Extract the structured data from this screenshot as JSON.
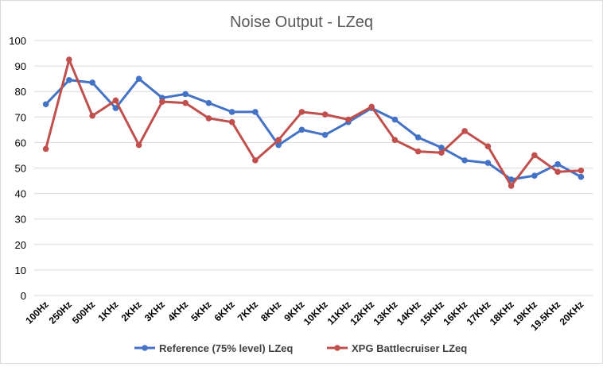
{
  "chart_data": {
    "type": "line",
    "title": "Noise Output  - LZeq",
    "xlabel": "",
    "ylabel": "",
    "ylim": [
      0,
      100
    ],
    "yticks": [
      "0",
      "10",
      "20",
      "30",
      "40",
      "50",
      "60",
      "70",
      "80",
      "90",
      "100"
    ],
    "grid": true,
    "legend_position": "bottom",
    "categories": [
      "100Hz",
      "250Hz",
      "500Hz",
      "1KHz",
      "2KHz",
      "3KHz",
      "4KHz",
      "5KHz",
      "6KHz",
      "7KHz",
      "8KHz",
      "9KHz",
      "10KHz",
      "11KHz",
      "12KHz",
      "13KHz",
      "14KHz",
      "15KHz",
      "16KHz",
      "17KHz",
      "18KHz",
      "19KHz",
      "19.5KHz",
      "20KHz"
    ],
    "series": [
      {
        "name": "Reference (75% level) LZeq",
        "color": "#4472c4",
        "values": [
          75,
          84.5,
          83.5,
          73.5,
          85,
          77.5,
          79,
          75.5,
          72,
          72,
          59,
          65,
          63,
          68,
          73.5,
          69,
          62,
          58,
          53,
          52,
          45.5,
          47,
          51.5,
          46.5
        ]
      },
      {
        "name": "XPG Battlecruiser LZeq",
        "color": "#c0504d",
        "values": [
          57.5,
          92.5,
          70.5,
          76.5,
          59,
          76,
          75.5,
          69.5,
          68,
          53,
          61,
          72,
          71,
          69,
          74,
          61,
          56.5,
          56,
          64.5,
          58.5,
          43,
          55,
          48.5,
          49
        ]
      }
    ]
  }
}
